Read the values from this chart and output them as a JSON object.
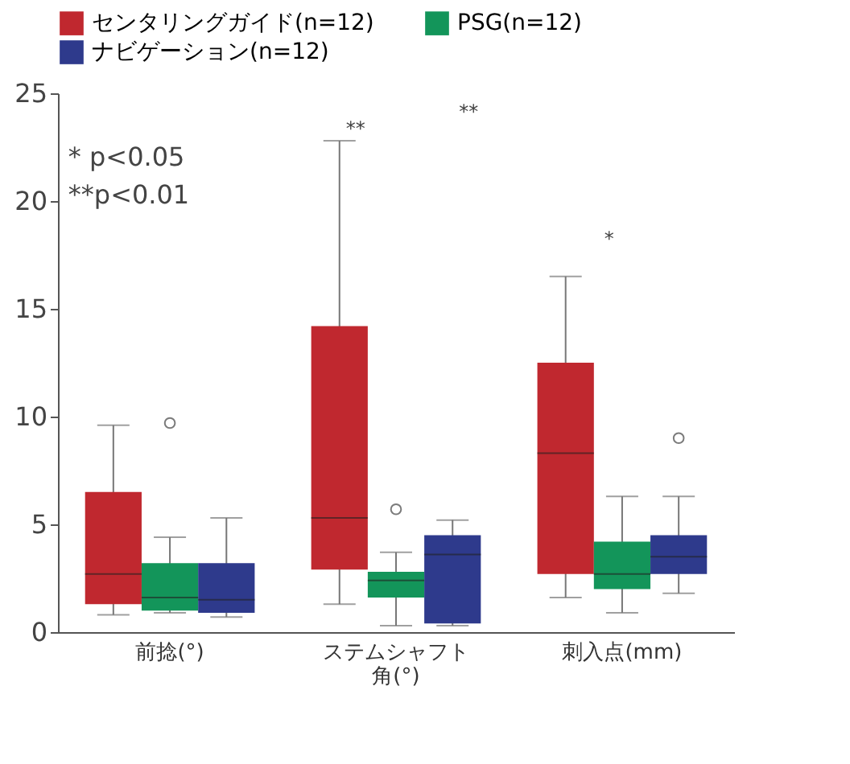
{
  "chart_data": {
    "type": "box",
    "categories": [
      "前捻(°)",
      "ステムシャフト角(°)",
      "刺入点(mm)"
    ],
    "series": [
      {
        "name": "センタリングガイド(n=12)",
        "color": "#c0282f",
        "boxes": [
          {
            "low": 0.8,
            "q1": 1.3,
            "median": 2.7,
            "q3": 6.5,
            "high": 9.6
          },
          {
            "low": 1.3,
            "q1": 2.9,
            "median": 5.3,
            "q3": 14.2,
            "high": 22.8
          },
          {
            "low": 1.6,
            "q1": 2.7,
            "median": 8.3,
            "q3": 12.5,
            "high": 16.5
          }
        ]
      },
      {
        "name": "PSG(n=12)",
        "color": "#13955a",
        "boxes": [
          {
            "low": 0.9,
            "q1": 1.0,
            "median": 1.6,
            "q3": 3.2,
            "high": 4.4,
            "outliers": [
              9.7
            ]
          },
          {
            "low": 0.3,
            "q1": 1.6,
            "median": 2.4,
            "q3": 2.8,
            "high": 3.7,
            "outliers": [
              5.7
            ]
          },
          {
            "low": 0.9,
            "q1": 2.0,
            "median": 2.7,
            "q3": 4.2,
            "high": 6.3
          }
        ]
      },
      {
        "name": "ナビゲーション(n=12)",
        "color": "#2e3a8c",
        "boxes": [
          {
            "low": 0.7,
            "q1": 0.9,
            "median": 1.5,
            "q3": 3.2,
            "high": 5.3
          },
          {
            "low": 0.3,
            "q1": 0.4,
            "median": 3.6,
            "q3": 4.5,
            "high": 5.2
          },
          {
            "low": 1.8,
            "q1": 2.7,
            "median": 3.5,
            "q3": 4.5,
            "high": 6.3,
            "outliers": [
              9.0
            ]
          }
        ]
      }
    ],
    "ylim": [
      0,
      25
    ],
    "yticks": [
      0,
      5,
      10,
      15,
      20,
      25
    ],
    "grid": false,
    "legend": "top",
    "annotations": [
      "* p<0.05",
      "**p<0.01",
      "**",
      "**",
      "*"
    ]
  }
}
